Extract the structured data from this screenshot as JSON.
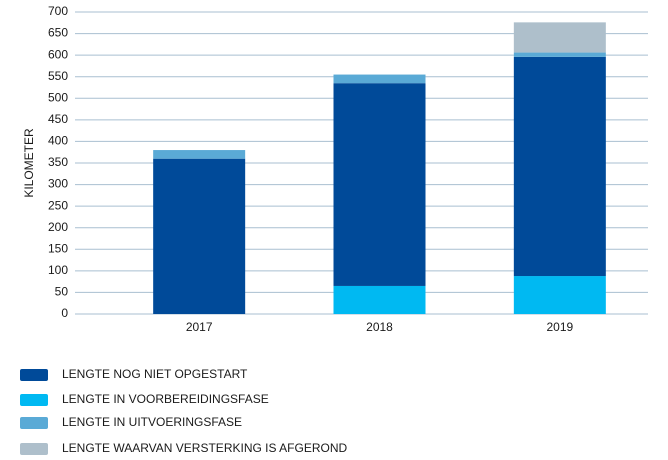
{
  "chart_data": {
    "type": "stacked_bar",
    "y_label": "KILOMETER",
    "categories": [
      "2017",
      "2018",
      "2019"
    ],
    "series": [
      {
        "name": "LENGTE NOG NIET OPGESTART",
        "color": "#004a99",
        "values": [
          360,
          470,
          508
        ]
      },
      {
        "name": "LENGTE IN VOORBEREIDINGSFASE",
        "color": "#00b9f2",
        "values": [
          0,
          65,
          88
        ]
      },
      {
        "name": "LENGTE IN UITVOERINGSFASE",
        "color": "#5aaad6",
        "values": [
          20,
          20,
          10
        ]
      },
      {
        "name": "LENGTE WAARVAN VERSTERKING IS AFGEROND",
        "color": "#aebfcb",
        "values": [
          0,
          0,
          70
        ]
      }
    ],
    "stack_order": [
      1,
      0,
      2,
      3
    ],
    "ylim": [
      0,
      700
    ],
    "yticks": [
      0,
      50,
      100,
      150,
      200,
      250,
      300,
      350,
      400,
      450,
      500,
      550,
      600,
      650,
      700
    ],
    "grid": true
  }
}
